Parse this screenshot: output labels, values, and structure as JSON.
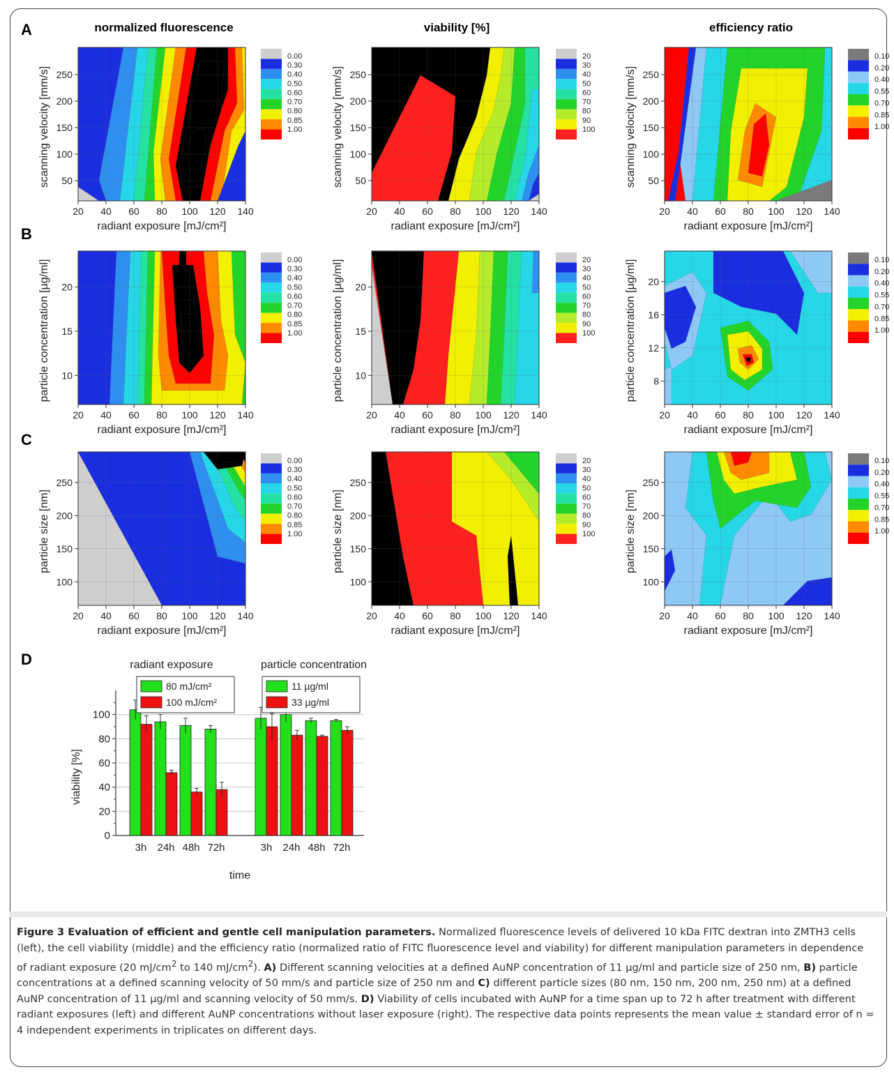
{
  "figure": {
    "panel_letters": [
      "A",
      "B",
      "C",
      "D"
    ],
    "column_titles": [
      "normalized fluorescence",
      "viability [%]",
      "efficiency ratio"
    ]
  },
  "scales": {
    "fluorescence": {
      "labels": [
        "0.00",
        "0.30",
        "0.40",
        "0.50",
        "0.60",
        "0.70",
        "0.80",
        "0.85",
        "1.00"
      ],
      "colors": [
        "#cfcfcf",
        "#1a2ee0",
        "#2e8ff0",
        "#26d7e8",
        "#25e2a4",
        "#22d42a",
        "#f2f000",
        "#ff8a00",
        "#ff0000"
      ]
    },
    "viability": {
      "labels": [
        "20",
        "30",
        "40",
        "50",
        "60",
        "70",
        "80",
        "90",
        "100"
      ],
      "colors": [
        "#cfcfcf",
        "#1a2ee0",
        "#2e8ff0",
        "#26d7e8",
        "#25e2a4",
        "#22d42a",
        "#b4ec2a",
        "#f2f000",
        "#ff2020"
      ]
    },
    "efficiency": {
      "labels": [
        "0.10",
        "0.20",
        "0.40",
        "0.55",
        "0.70",
        "0.85",
        "1.00"
      ],
      "colors": [
        "#7a7a7a",
        "#1a2ee0",
        "#8ec8f5",
        "#26d7e8",
        "#22d42a",
        "#f2f000",
        "#ff8a00",
        "#ff0000"
      ]
    }
  },
  "heatmaps": [
    {
      "id": "A1",
      "title": "normalized fluorescence",
      "xlabel": "radiant exposure [mJ/cm²]",
      "ylabel": "scanning velocity [mm/s]",
      "xticks": [
        "20",
        "40",
        "60",
        "80",
        "100",
        "120",
        "140"
      ],
      "yticks": [
        "50",
        "100",
        "150",
        "200",
        "250"
      ],
      "scale": "fluorescence"
    },
    {
      "id": "A2",
      "title": "viability [%]",
      "xlabel": "radiant exposure [mJ/cm²]",
      "ylabel": "scanning velocity [mm/s]",
      "xticks": [
        "20",
        "40",
        "60",
        "80",
        "100",
        "120",
        "140"
      ],
      "yticks": [
        "50",
        "100",
        "150",
        "200",
        "250"
      ],
      "scale": "viability"
    },
    {
      "id": "A3",
      "title": "efficiency ratio",
      "xlabel": "radiant exposure [mJ/cm²]",
      "ylabel": "scanning velocity [mm/s]",
      "xticks": [
        "20",
        "40",
        "60",
        "80",
        "100",
        "120",
        "140"
      ],
      "yticks": [
        "50",
        "100",
        "150",
        "200",
        "250"
      ],
      "scale": "efficiency"
    },
    {
      "id": "B1",
      "xlabel": "radiant exposure [mJ/cm²]",
      "ylabel": "particle concentration [µg/ml]",
      "xticks": [
        "20",
        "40",
        "60",
        "80",
        "100",
        "120",
        "140"
      ],
      "yticks": [
        "10",
        "15",
        "20"
      ],
      "scale": "fluorescence"
    },
    {
      "id": "B2",
      "xlabel": "radiant exposure [mJ/cm²]",
      "ylabel": "particle concentration [µg/ml]",
      "xticks": [
        "20",
        "40",
        "60",
        "80",
        "100",
        "120",
        "140"
      ],
      "yticks": [
        "10",
        "15",
        "20"
      ],
      "scale": "viability"
    },
    {
      "id": "B3",
      "xlabel": "radiant exposure [mJ/cm²]",
      "ylabel": "particle concentration [µg/ml]",
      "xticks": [
        "20",
        "40",
        "60",
        "80",
        "100",
        "120",
        "140"
      ],
      "yticks": [
        "8",
        "12",
        "16",
        "20"
      ],
      "scale": "efficiency"
    },
    {
      "id": "C1",
      "xlabel": "radiant exposure [mJ/cm²]",
      "ylabel": "particle size [nm]",
      "xticks": [
        "20",
        "40",
        "60",
        "80",
        "100",
        "120",
        "140"
      ],
      "yticks": [
        "100",
        "150",
        "200",
        "250"
      ],
      "scale": "fluorescence"
    },
    {
      "id": "C2",
      "xlabel": "radiant exposure [mJ/cm²]",
      "ylabel": "particle size [nm]",
      "xticks": [
        "20",
        "40",
        "60",
        "80",
        "100",
        "120",
        "140"
      ],
      "yticks": [
        "100",
        "150",
        "200",
        "250"
      ],
      "scale": "viability"
    },
    {
      "id": "C3",
      "xlabel": "radiant exposure [mJ/cm²]",
      "ylabel": "particle size [nm]",
      "xticks": [
        "20",
        "40",
        "60",
        "80",
        "100",
        "120",
        "140"
      ],
      "yticks": [
        "100",
        "150",
        "200",
        "250"
      ],
      "scale": "efficiency"
    }
  ],
  "chart_data": {
    "type": "bar",
    "ylabel": "viability [%]",
    "xlabel": "time",
    "ylim": [
      0,
      120
    ],
    "yticks": [
      "0",
      "20",
      "40",
      "60",
      "80",
      "100"
    ],
    "groups": [
      {
        "title": "radiant exposure",
        "categories": [
          "3h",
          "24h",
          "48h",
          "72h"
        ],
        "series": [
          {
            "name": "80 mJ/cm²",
            "color": "#22e01a",
            "values": [
              104,
              94,
              91,
              88
            ],
            "errors": [
              8,
              6,
              6,
              3
            ]
          },
          {
            "name": "100 mJ/cm²",
            "color": "#ee1111",
            "values": [
              92,
              52,
              36,
              38
            ],
            "errors": [
              7,
              2,
              3,
              6
            ]
          }
        ]
      },
      {
        "title": "particle concentration",
        "categories": [
          "3h",
          "24h",
          "48h",
          "72h"
        ],
        "series": [
          {
            "name": "11 µg/ml",
            "color": "#22e01a",
            "values": [
              97,
              100,
              95,
              95
            ],
            "errors": [
              9,
              6,
              2,
              1
            ]
          },
          {
            "name": "33 µg/ml",
            "color": "#ee1111",
            "values": [
              90,
              83,
              82,
              87
            ],
            "errors": [
              11,
              4,
              1,
              3
            ]
          }
        ]
      }
    ]
  },
  "caption": {
    "title": "Figure 3 Evaluation of efficient and gentle cell manipulation parameters.",
    "p1": " Normalized fluorescence levels of delivered 10 kDa FITC dextran into ZMTH3 cells (left), the cell viability (middle) and the efficiency ratio (normalized ratio of FITC fluorescence level and viability) for different manipulation parameters in dependence of radiant exposure (20 mJ/cm",
    "sup1": "2",
    "p1b": " to 140 mJ/cm",
    "sup2": "2",
    "p1c": "). ",
    "A": "A)",
    "pA": " Different scanning velocities at a defined AuNP concentration of 11 µg/ml and particle size of 250 nm, ",
    "B": "B)",
    "pB": " particle concentrations at a defined scanning velocity of 50 mm/s and particle size of 250 nm and ",
    "C": "C)",
    "pC": " different particle sizes (80 nm, 150 nm, 200 nm, 250 nm) at a defined AuNP concentration of 11 µg/ml and scanning velocity of 50 mm/s. ",
    "D": "D)",
    "pD": " Viability of cells incubated with AuNP for a time span up to 72 h after treatment with different radiant exposures (left) and different AuNP concentrations without laser exposure (right). The respective data points represents the mean value ± standard error of n = 4 independent experiments in triplicates on different days."
  }
}
